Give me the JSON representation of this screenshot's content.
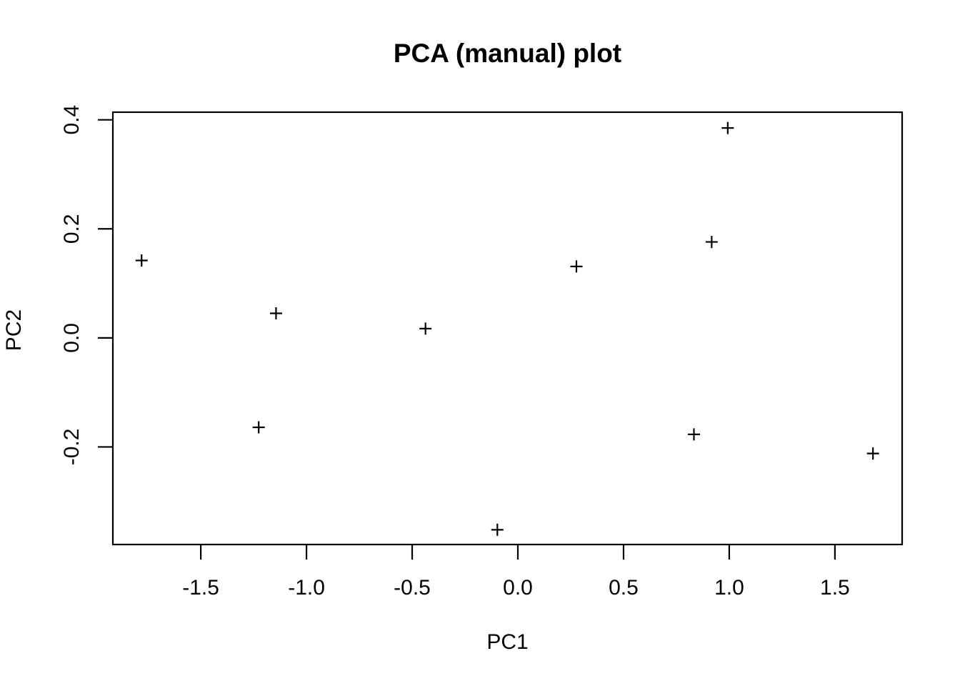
{
  "figure": {
    "background": "#ffffff",
    "axis_color": "#000000"
  },
  "chart_data": {
    "type": "scatter",
    "title": "PCA (manual) plot",
    "xlabel": "PC1",
    "ylabel": "PC2",
    "marker": "plus",
    "marker_color": "#000000",
    "grid": false,
    "legend": "none",
    "xlim": [
      -1.916,
      1.818
    ],
    "ylim": [
      -0.379,
      0.414
    ],
    "x_ticks": {
      "values": [
        -1.5,
        -1.0,
        -0.5,
        0.0,
        0.5,
        1.0,
        1.5
      ],
      "labels": [
        "-1.5",
        "-1.0",
        "-0.5",
        "0.0",
        "0.5",
        "1.0",
        "1.5"
      ]
    },
    "y_ticks": {
      "values": [
        -0.2,
        0.0,
        0.2,
        0.4
      ],
      "labels": [
        "-0.2",
        "0.0",
        "0.2",
        "0.4"
      ]
    },
    "points": [
      {
        "x": -1.78,
        "y": 0.142
      },
      {
        "x": -1.226,
        "y": -0.164
      },
      {
        "x": -1.144,
        "y": 0.045
      },
      {
        "x": -0.437,
        "y": 0.017
      },
      {
        "x": -0.097,
        "y": -0.352
      },
      {
        "x": 0.277,
        "y": 0.131
      },
      {
        "x": 0.833,
        "y": -0.177
      },
      {
        "x": 0.917,
        "y": 0.176
      },
      {
        "x": 0.993,
        "y": 0.385
      },
      {
        "x": 1.68,
        "y": -0.212
      }
    ]
  }
}
